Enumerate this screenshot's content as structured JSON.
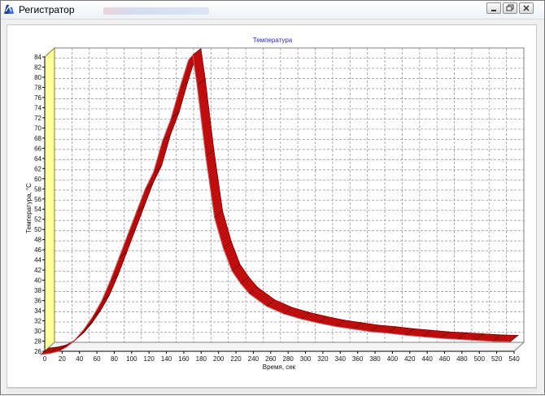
{
  "window": {
    "title": "Регистратор"
  },
  "chart_data": {
    "type": "area",
    "title": "Температура",
    "xlabel": "Время, сек",
    "ylabel": "Температура, °С",
    "xlim": [
      0,
      540
    ],
    "ylim": [
      26,
      84
    ],
    "grid": true,
    "legend": "none",
    "color": "#cc1010",
    "x_ticks": [
      0,
      20,
      40,
      60,
      80,
      100,
      120,
      140,
      160,
      180,
      200,
      220,
      240,
      260,
      280,
      300,
      320,
      340,
      360,
      380,
      400,
      420,
      440,
      460,
      480,
      500,
      520,
      540
    ],
    "y_ticks": [
      26,
      28,
      30,
      32,
      34,
      36,
      38,
      40,
      42,
      44,
      46,
      48,
      50,
      52,
      54,
      56,
      58,
      60,
      62,
      64,
      66,
      68,
      70,
      72,
      74,
      76,
      78,
      80,
      82,
      84
    ],
    "series": [
      {
        "x": [
          0,
          10,
          20,
          30,
          40,
          50,
          60,
          70,
          80,
          90,
          100,
          110,
          120,
          130,
          140,
          150,
          160,
          170,
          175,
          180,
          190,
          200,
          210,
          220,
          230,
          240,
          260,
          280,
          300,
          320,
          340,
          360,
          380,
          400,
          420,
          440,
          460,
          480,
          500,
          520,
          540
        ],
        "y": [
          26,
          26.2,
          26.6,
          27.5,
          29,
          31,
          33.5,
          36.5,
          40.5,
          45,
          49.5,
          54,
          58.5,
          62,
          68,
          72.5,
          78.5,
          84,
          85,
          79,
          65,
          53,
          47,
          42.5,
          40,
          38,
          35.5,
          34,
          33,
          32.2,
          31.5,
          31,
          30.5,
          30.2,
          29.8,
          29.5,
          29.2,
          29,
          28.8,
          28.6,
          28.5
        ]
      }
    ]
  }
}
